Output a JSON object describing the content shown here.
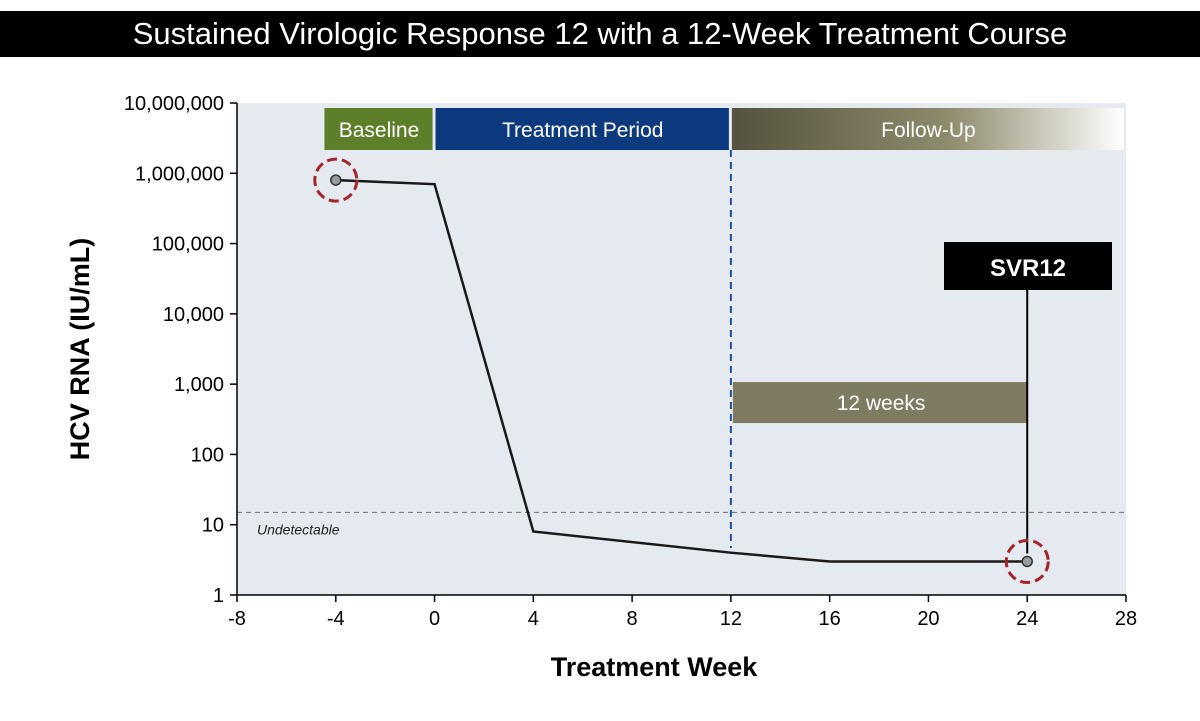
{
  "title": "Sustained Virologic Response 12 with a 12-Week Treatment Course",
  "chart_data": {
    "type": "line",
    "title": "Sustained Virologic Response 12 with a 12-Week Treatment Course",
    "xlabel": "Treatment Week",
    "ylabel": "HCV RNA (IU/mL)",
    "xlim": [
      -8,
      28
    ],
    "ylim": [
      1,
      10000000
    ],
    "yscale": "log",
    "grid": false,
    "x_ticks": [
      -8,
      -4,
      0,
      4,
      8,
      12,
      16,
      20,
      24,
      28
    ],
    "x_tick_labels": [
      "-8",
      "-4",
      "0",
      "4",
      "8",
      "12",
      "16",
      "20",
      "24",
      "28"
    ],
    "y_ticks": [
      1,
      10,
      100,
      1000,
      10000,
      100000,
      1000000,
      10000000
    ],
    "y_tick_labels": [
      "1",
      "10",
      "100",
      "1,000",
      "10,000",
      "100,000",
      "1,000,000",
      "10,000,000"
    ],
    "series": [
      {
        "name": "HCV RNA",
        "x": [
          -4,
          0,
          4,
          12,
          16,
          24
        ],
        "y": [
          800000,
          700000,
          8,
          4,
          3,
          3
        ]
      }
    ],
    "highlighted_points": [
      {
        "x": -4,
        "y": 800000
      },
      {
        "x": 24,
        "y": 3
      }
    ],
    "threshold": {
      "value": 15,
      "label": "Undetectable"
    },
    "phases": [
      {
        "label": "Baseline",
        "start": -4.5,
        "end": 0,
        "color": "#5e7f2a"
      },
      {
        "label": "Treatment Period",
        "start": 0,
        "end": 12,
        "color": "#0d3a7e"
      },
      {
        "label": "Follow-Up",
        "start": 12,
        "end": 28,
        "color": "#55533e"
      }
    ],
    "treatment_end_week": 12,
    "duration_bar": {
      "label": "12 weeks",
      "start": 12,
      "end": 24,
      "y": 700,
      "color": "#7e7b61"
    },
    "svr_marker": {
      "label": "SVR12",
      "x": 24,
      "label_y": 50000
    }
  }
}
